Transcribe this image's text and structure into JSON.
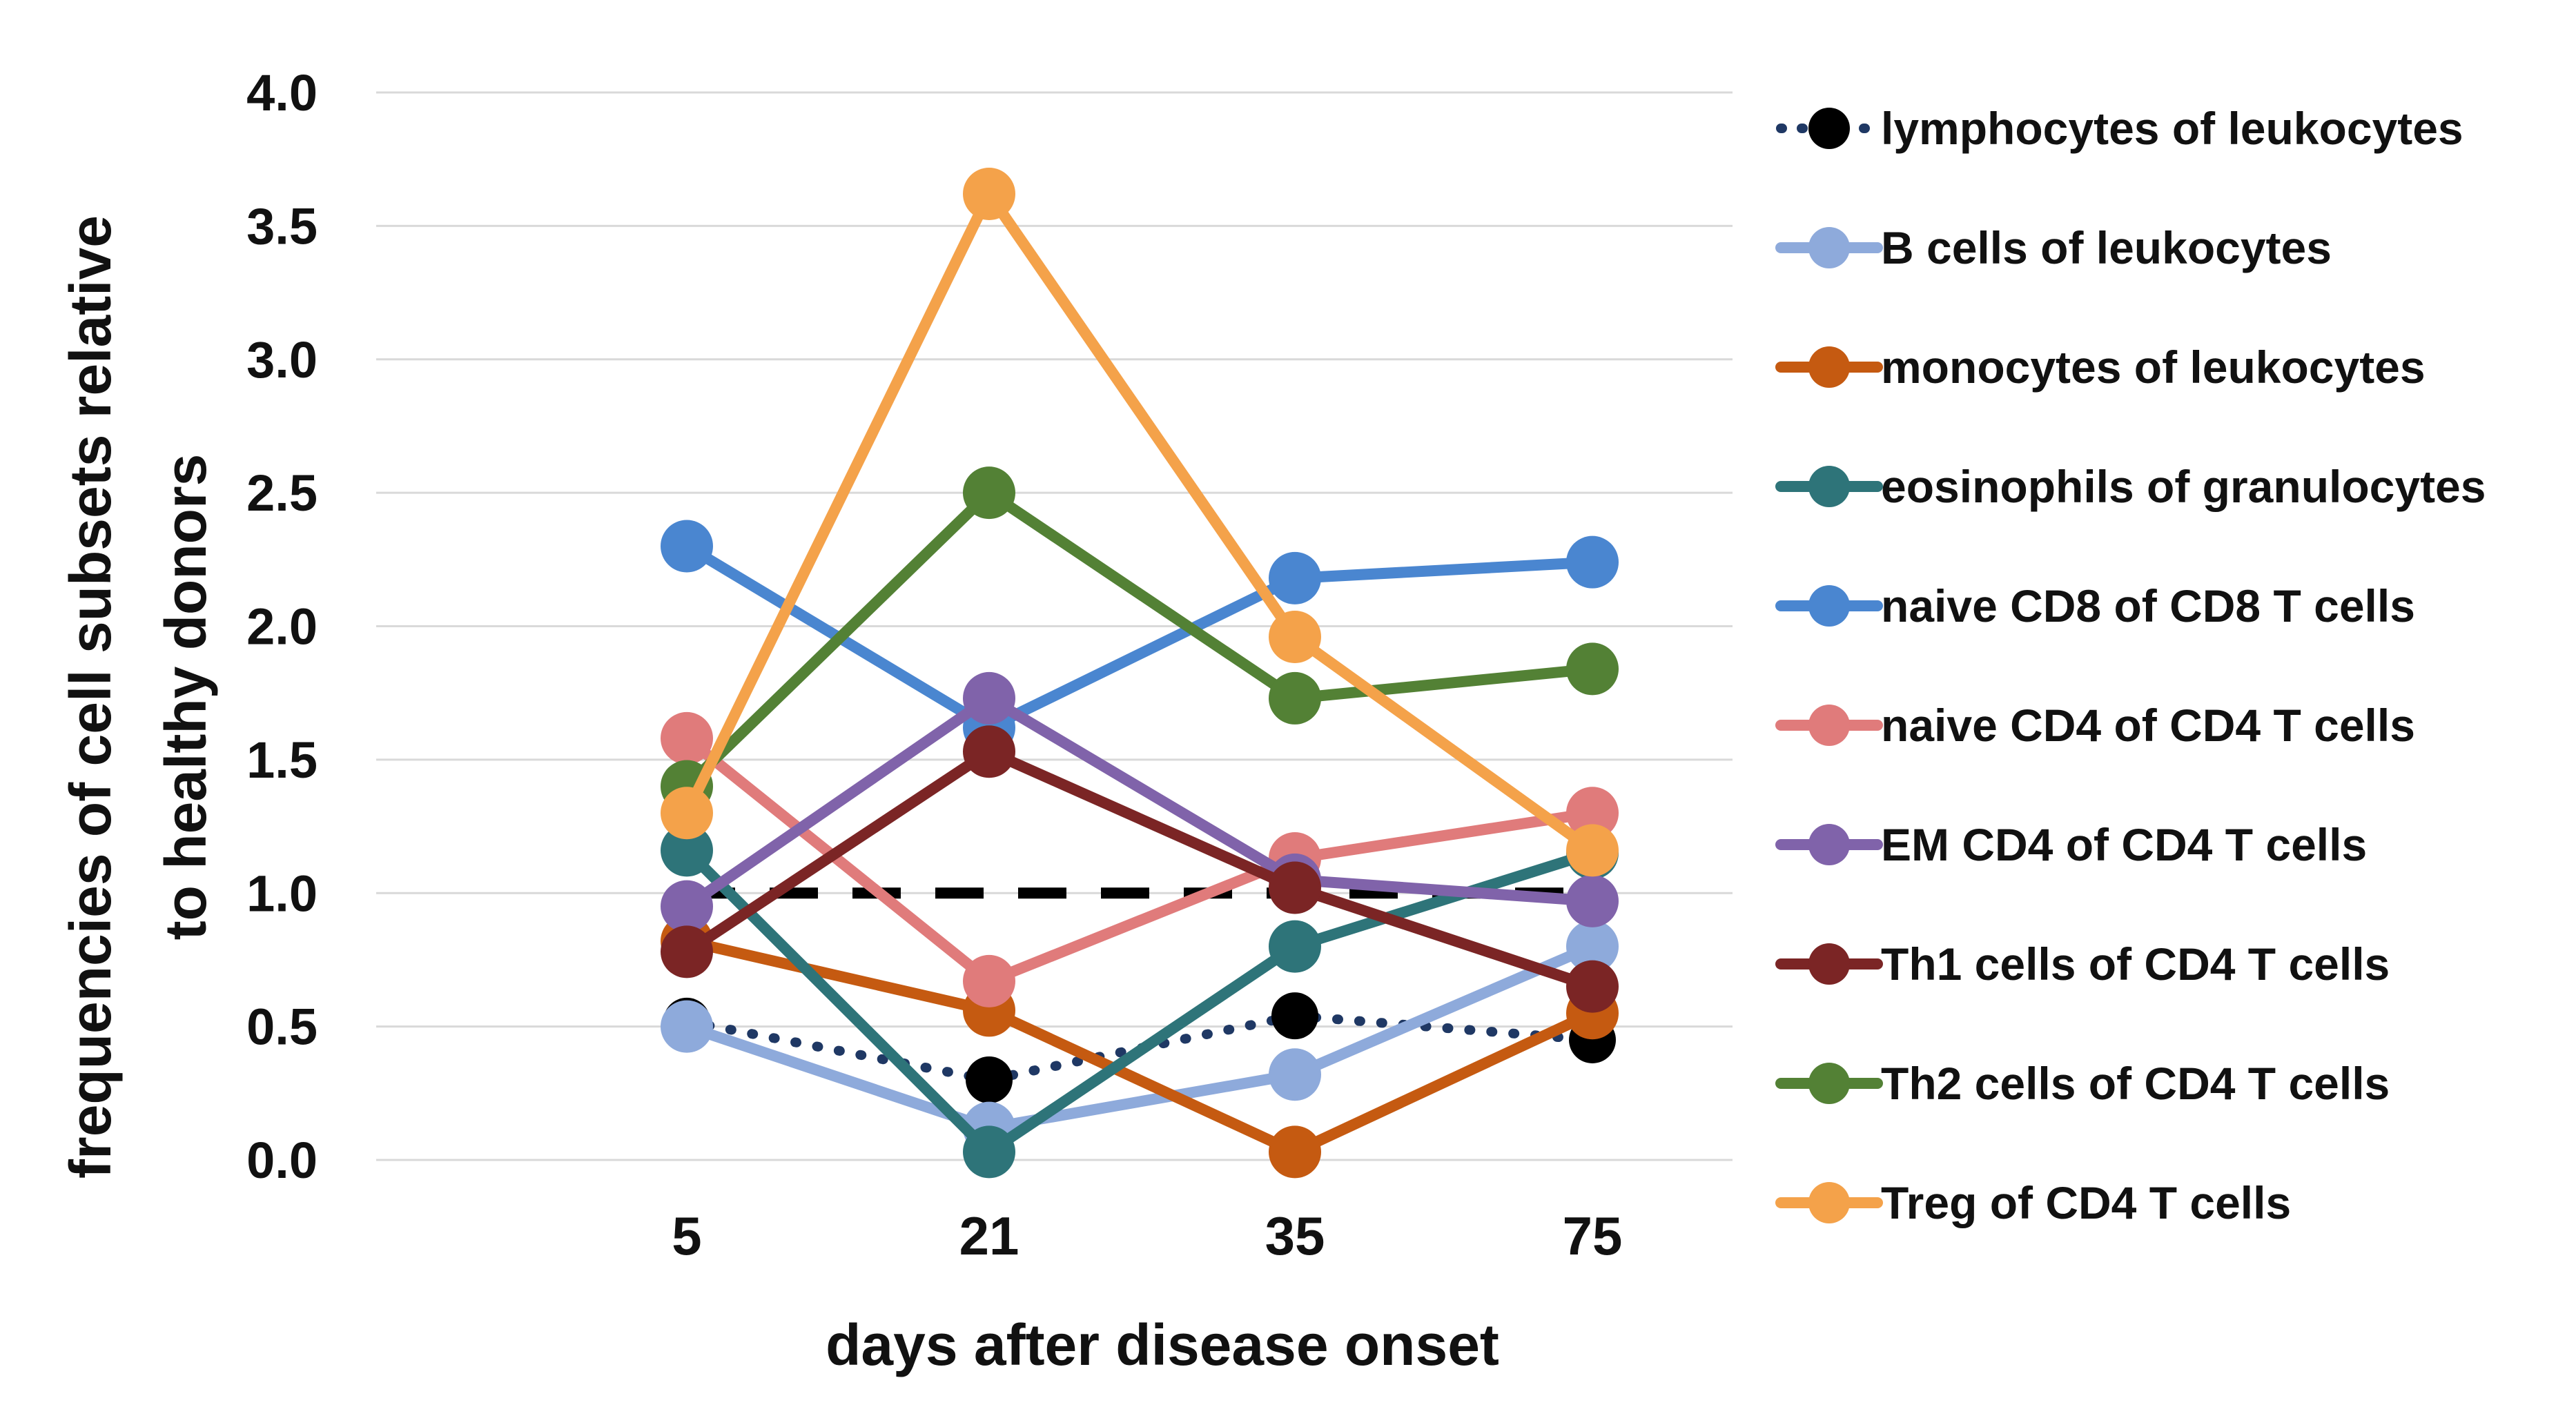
{
  "chart_data": {
    "type": "line",
    "x": [
      "5",
      "21",
      "35",
      "75"
    ],
    "xlabel": "days after disease onset",
    "ylabel_lines": [
      "frequencies of cell subsets relative",
      "to healthy donors"
    ],
    "ylim": [
      0,
      4
    ],
    "yticks": [
      "0.0",
      "0.5",
      "1.0",
      "1.5",
      "2.0",
      "2.5",
      "3.0",
      "3.5",
      "4.0"
    ],
    "grid": true,
    "legend_position": "right",
    "reference_line": {
      "value": 1.0,
      "style": "dashed",
      "color": "#000000"
    },
    "series": [
      {
        "name": "lymphocytes of leukocytes",
        "color": "#1f3864",
        "marker_color": "#000000",
        "dotted": true,
        "values": [
          0.52,
          0.3,
          0.54,
          0.45
        ]
      },
      {
        "name": "B cells of leukocytes",
        "color": "#8eaadb",
        "marker_color": "#8eaadb",
        "values": [
          0.5,
          0.12,
          0.32,
          0.8
        ]
      },
      {
        "name": "monocytes of leukocytes",
        "color": "#c55a11",
        "marker_color": "#c55a11",
        "values": [
          0.82,
          0.56,
          0.03,
          0.55
        ]
      },
      {
        "name": "eosinophils of granulocytes",
        "color": "#2e7479",
        "marker_color": "#2e7479",
        "values": [
          1.16,
          0.03,
          0.8,
          1.15
        ]
      },
      {
        "name": "naive CD8 of CD8 T cells",
        "color": "#4a86d0",
        "marker_color": "#4a86d0",
        "values": [
          2.3,
          1.62,
          2.18,
          2.24
        ]
      },
      {
        "name": "naive CD4 of CD4 T cells",
        "color": "#e07b7b",
        "marker_color": "#e07b7b",
        "values": [
          1.58,
          0.67,
          1.13,
          1.3
        ]
      },
      {
        "name": "EM CD4 of CD4 T cells",
        "color": "#8063aa",
        "marker_color": "#8063aa",
        "values": [
          0.95,
          1.73,
          1.05,
          0.97
        ]
      },
      {
        "name": "Th1 cells  of CD4 T cells",
        "color": "#7b2525",
        "marker_color": "#7b2525",
        "values": [
          0.78,
          1.53,
          1.02,
          0.65
        ]
      },
      {
        "name": "Th2 cells of CD4 T cells",
        "color": "#538135",
        "marker_color": "#538135",
        "values": [
          1.4,
          2.5,
          1.73,
          1.84
        ]
      },
      {
        "name": "Treg of CD4 T cells",
        "color": "#f4a24a",
        "marker_color": "#f4a24a",
        "values": [
          1.3,
          3.62,
          1.96,
          1.16
        ]
      }
    ]
  }
}
